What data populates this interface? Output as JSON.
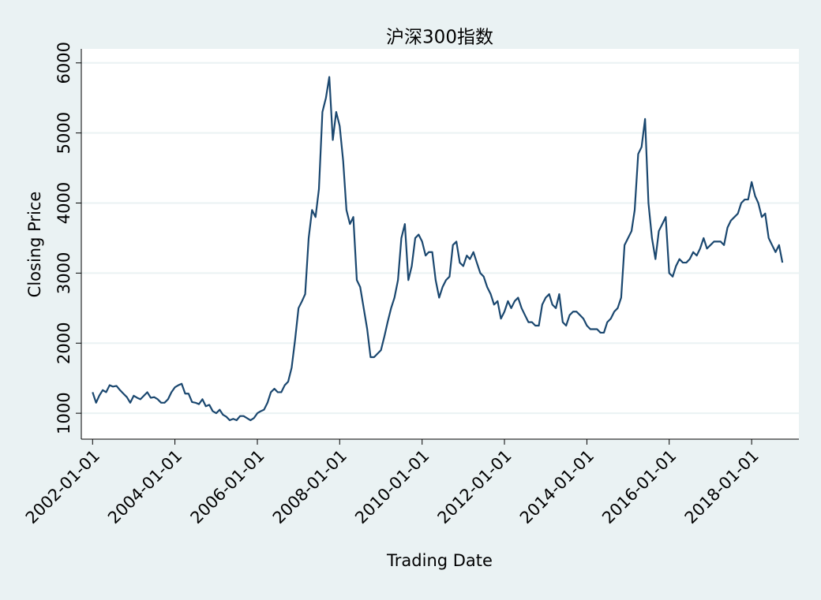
{
  "chart_data": {
    "type": "line",
    "title": "沪深300指数",
    "x_label": "Trading Date",
    "y_label": "Closing Price",
    "color": "#1a476f",
    "xlim": [
      "2001-09-23",
      "2019-02-24"
    ],
    "xticks": [
      "2002-01-01",
      "2004-01-01",
      "2006-01-01",
      "2008-01-01",
      "2010-01-01",
      "2012-01-01",
      "2014-01-01",
      "2016-01-01",
      "2018-01-01"
    ],
    "ylim": [
      630,
      6200
    ],
    "yticks": [
      1000,
      2000,
      3000,
      4000,
      5000,
      6000
    ],
    "grid": true,
    "x": [
      "2002-01-01",
      "2002-02-01",
      "2002-03-01",
      "2002-04-01",
      "2002-05-01",
      "2002-06-01",
      "2002-07-01",
      "2002-08-01",
      "2002-09-01",
      "2002-10-01",
      "2002-11-01",
      "2002-12-01",
      "2003-01-01",
      "2003-02-01",
      "2003-03-01",
      "2003-04-01",
      "2003-05-01",
      "2003-06-01",
      "2003-07-01",
      "2003-08-01",
      "2003-09-01",
      "2003-10-01",
      "2003-11-01",
      "2003-12-01",
      "2004-01-01",
      "2004-02-01",
      "2004-03-01",
      "2004-04-01",
      "2004-05-01",
      "2004-06-01",
      "2004-07-01",
      "2004-08-01",
      "2004-09-01",
      "2004-10-01",
      "2004-11-01",
      "2004-12-01",
      "2005-01-01",
      "2005-02-01",
      "2005-03-01",
      "2005-04-01",
      "2005-05-01",
      "2005-06-01",
      "2005-07-01",
      "2005-08-01",
      "2005-09-01",
      "2005-10-01",
      "2005-11-01",
      "2005-12-01",
      "2006-01-01",
      "2006-02-01",
      "2006-03-01",
      "2006-04-01",
      "2006-05-01",
      "2006-06-01",
      "2006-07-01",
      "2006-08-01",
      "2006-09-01",
      "2006-10-01",
      "2006-11-01",
      "2006-12-01",
      "2007-01-01",
      "2007-02-01",
      "2007-03-01",
      "2007-04-01",
      "2007-05-01",
      "2007-06-01",
      "2007-07-01",
      "2007-08-01",
      "2007-09-01",
      "2007-10-01",
      "2007-11-01",
      "2007-12-01",
      "2008-01-01",
      "2008-02-01",
      "2008-03-01",
      "2008-04-01",
      "2008-05-01",
      "2008-06-01",
      "2008-07-01",
      "2008-08-01",
      "2008-09-01",
      "2008-10-01",
      "2008-11-01",
      "2008-12-01",
      "2009-01-01",
      "2009-02-01",
      "2009-03-01",
      "2009-04-01",
      "2009-05-01",
      "2009-06-01",
      "2009-07-01",
      "2009-08-01",
      "2009-09-01",
      "2009-10-01",
      "2009-11-01",
      "2009-12-01",
      "2010-01-01",
      "2010-02-01",
      "2010-03-01",
      "2010-04-01",
      "2010-05-01",
      "2010-06-01",
      "2010-07-01",
      "2010-08-01",
      "2010-09-01",
      "2010-10-01",
      "2010-11-01",
      "2010-12-01",
      "2011-01-01",
      "2011-02-01",
      "2011-03-01",
      "2011-04-01",
      "2011-05-01",
      "2011-06-01",
      "2011-07-01",
      "2011-08-01",
      "2011-09-01",
      "2011-10-01",
      "2011-11-01",
      "2011-12-01",
      "2012-01-01",
      "2012-02-01",
      "2012-03-01",
      "2012-04-01",
      "2012-05-01",
      "2012-06-01",
      "2012-07-01",
      "2012-08-01",
      "2012-09-01",
      "2012-10-01",
      "2012-11-01",
      "2012-12-01",
      "2013-01-01",
      "2013-02-01",
      "2013-03-01",
      "2013-04-01",
      "2013-05-01",
      "2013-06-01",
      "2013-07-01",
      "2013-08-01",
      "2013-09-01",
      "2013-10-01",
      "2013-11-01",
      "2013-12-01",
      "2014-01-01",
      "2014-02-01",
      "2014-03-01",
      "2014-04-01",
      "2014-05-01",
      "2014-06-01",
      "2014-07-01",
      "2014-08-01",
      "2014-09-01",
      "2014-10-01",
      "2014-11-01",
      "2014-12-01",
      "2015-01-01",
      "2015-02-01",
      "2015-03-01",
      "2015-04-01",
      "2015-05-01",
      "2015-06-01",
      "2015-07-01",
      "2015-08-01",
      "2015-09-01",
      "2015-10-01",
      "2015-11-01",
      "2015-12-01",
      "2016-01-01",
      "2016-02-01",
      "2016-03-01",
      "2016-04-01",
      "2016-05-01",
      "2016-06-01",
      "2016-07-01",
      "2016-08-01",
      "2016-09-01",
      "2016-10-01",
      "2016-11-01",
      "2016-12-01",
      "2017-01-01",
      "2017-02-01",
      "2017-03-01",
      "2017-04-01",
      "2017-05-01",
      "2017-06-01",
      "2017-07-01",
      "2017-08-01",
      "2017-09-01",
      "2017-10-01",
      "2017-11-01",
      "2017-12-01",
      "2018-01-01",
      "2018-02-01",
      "2018-03-01",
      "2018-04-01",
      "2018-05-01",
      "2018-06-01",
      "2018-07-01",
      "2018-08-01",
      "2018-09-01",
      "2018-10-01"
    ],
    "values": [
      1300,
      1150,
      1250,
      1330,
      1300,
      1400,
      1380,
      1390,
      1330,
      1280,
      1230,
      1150,
      1250,
      1220,
      1200,
      1250,
      1300,
      1220,
      1230,
      1200,
      1150,
      1150,
      1200,
      1300,
      1370,
      1400,
      1420,
      1280,
      1280,
      1160,
      1150,
      1130,
      1200,
      1100,
      1120,
      1030,
      1000,
      1050,
      980,
      950,
      900,
      920,
      900,
      960,
      960,
      930,
      900,
      930,
      1000,
      1030,
      1050,
      1150,
      1300,
      1350,
      1300,
      1300,
      1400,
      1450,
      1650,
      2040,
      2500,
      2600,
      2700,
      3500,
      3900,
      3800,
      4200,
      5300,
      5500,
      5800,
      4900,
      5300,
      5100,
      4600,
      3900,
      3700,
      3800,
      2900,
      2800,
      2500,
      2200,
      1800,
      1800,
      1850,
      1900,
      2100,
      2300,
      2500,
      2650,
      2900,
      3500,
      3700,
      2900,
      3100,
      3500,
      3550,
      3450,
      3250,
      3300,
      3300,
      2900,
      2650,
      2800,
      2900,
      2950,
      3400,
      3450,
      3150,
      3100,
      3250,
      3200,
      3300,
      3150,
      3000,
      2950,
      2800,
      2700,
      2550,
      2600,
      2350,
      2450,
      2600,
      2500,
      2600,
      2650,
      2500,
      2400,
      2300,
      2300,
      2250,
      2250,
      2550,
      2650,
      2700,
      2550,
      2500,
      2700,
      2300,
      2250,
      2400,
      2450,
      2450,
      2400,
      2350,
      2250,
      2200,
      2200,
      2200,
      2150,
      2150,
      2300,
      2350,
      2450,
      2500,
      2650,
      3400,
      3500,
      3600,
      3900,
      4700,
      4800,
      5200,
      4000,
      3500,
      3200,
      3600,
      3700,
      3800,
      3000,
      2950,
      3100,
      3200,
      3150,
      3150,
      3200,
      3300,
      3250,
      3350,
      3500,
      3350,
      3400,
      3450,
      3450,
      3450,
      3400,
      3650,
      3750,
      3800,
      3850,
      4000,
      4050,
      4050,
      4300,
      4100,
      4000,
      3800,
      3850,
      3500,
      3400,
      3300,
      3400,
      3150
    ]
  }
}
